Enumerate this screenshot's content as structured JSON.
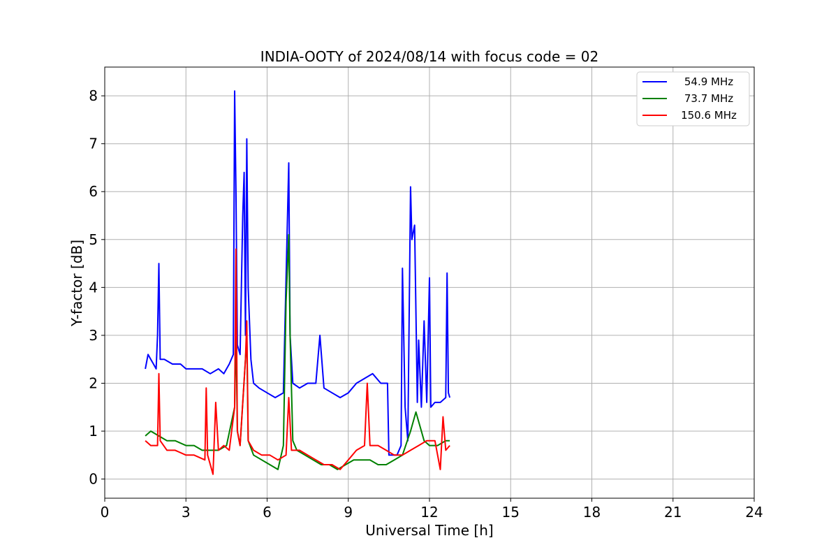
{
  "chart_data": {
    "type": "line",
    "title": "INDIA-OOTY of 2024/08/14 with focus code = 02",
    "xlabel": "Universal Time [h]",
    "ylabel": "Y-factor [dB]",
    "xlim": [
      0,
      24
    ],
    "ylim": [
      -0.4,
      8.6
    ],
    "xticks": [
      0,
      3,
      6,
      9,
      12,
      15,
      18,
      21,
      24
    ],
    "yticks": [
      0,
      1,
      2,
      3,
      4,
      5,
      6,
      7,
      8
    ],
    "grid": true,
    "legend_position": "top-right",
    "series": [
      {
        "name": "54.9 MHz",
        "color": "#0000ff",
        "x": [
          1.5,
          1.6,
          1.7,
          1.8,
          1.9,
          1.95,
          2.0,
          2.05,
          2.2,
          2.5,
          2.8,
          3.0,
          3.3,
          3.6,
          3.9,
          4.2,
          4.4,
          4.6,
          4.75,
          4.8,
          4.85,
          4.9,
          5.0,
          5.1,
          5.15,
          5.2,
          5.25,
          5.3,
          5.4,
          5.5,
          5.7,
          6.0,
          6.3,
          6.6,
          6.8,
          6.85,
          6.95,
          7.2,
          7.5,
          7.8,
          7.95,
          8.1,
          8.4,
          8.7,
          9.0,
          9.3,
          9.6,
          9.9,
          10.2,
          10.45,
          10.5,
          10.6,
          10.8,
          10.95,
          11.0,
          11.1,
          11.2,
          11.3,
          11.35,
          11.45,
          11.55,
          11.6,
          11.7,
          11.8,
          11.9,
          12.0,
          12.05,
          12.2,
          12.4,
          12.6,
          12.65,
          12.7,
          12.75
        ],
        "y": [
          2.3,
          2.6,
          2.5,
          2.4,
          2.3,
          3.0,
          4.5,
          2.5,
          2.5,
          2.4,
          2.4,
          2.3,
          2.3,
          2.3,
          2.2,
          2.3,
          2.2,
          2.4,
          2.6,
          8.1,
          6.0,
          2.8,
          2.6,
          5.5,
          6.4,
          3.0,
          7.1,
          4.0,
          2.5,
          2.0,
          1.9,
          1.8,
          1.7,
          1.8,
          6.6,
          3.0,
          2.0,
          1.9,
          2.0,
          2.0,
          3.0,
          1.9,
          1.8,
          1.7,
          1.8,
          2.0,
          2.1,
          2.2,
          2.0,
          2.0,
          0.5,
          0.5,
          0.5,
          0.7,
          4.4,
          1.5,
          0.8,
          6.1,
          5.0,
          5.3,
          1.6,
          2.9,
          1.5,
          3.3,
          1.6,
          4.2,
          1.5,
          1.6,
          1.6,
          1.7,
          4.3,
          1.8,
          1.7
        ]
      },
      {
        "name": "73.7 MHz",
        "color": "#008000",
        "x": [
          1.5,
          1.7,
          2.0,
          2.3,
          2.6,
          3.0,
          3.3,
          3.6,
          3.9,
          4.2,
          4.5,
          4.8,
          4.85,
          4.9,
          5.0,
          5.2,
          5.25,
          5.3,
          5.5,
          5.8,
          6.1,
          6.4,
          6.6,
          6.7,
          6.8,
          6.85,
          6.95,
          7.1,
          7.4,
          7.7,
          8.0,
          8.3,
          8.6,
          8.9,
          9.2,
          9.5,
          9.8,
          10.1,
          10.4,
          10.7,
          11.0,
          11.3,
          11.5,
          11.6,
          11.8,
          12.0,
          12.3,
          12.6,
          12.75
        ],
        "y": [
          0.9,
          1.0,
          0.9,
          0.8,
          0.8,
          0.7,
          0.7,
          0.6,
          0.6,
          0.6,
          0.7,
          1.5,
          3.2,
          1.0,
          0.7,
          2.5,
          3.0,
          0.8,
          0.5,
          0.4,
          0.3,
          0.2,
          0.7,
          3.7,
          5.1,
          3.0,
          0.8,
          0.6,
          0.5,
          0.4,
          0.3,
          0.3,
          0.2,
          0.3,
          0.4,
          0.4,
          0.4,
          0.3,
          0.3,
          0.4,
          0.5,
          1.0,
          1.4,
          1.2,
          0.8,
          0.7,
          0.7,
          0.8,
          0.8
        ]
      },
      {
        "name": "150.6 MHz",
        "color": "#ff0000",
        "x": [
          1.5,
          1.7,
          1.95,
          2.0,
          2.05,
          2.3,
          2.6,
          3.0,
          3.3,
          3.7,
          3.75,
          3.8,
          4.0,
          4.1,
          4.2,
          4.4,
          4.6,
          4.8,
          4.85,
          4.9,
          5.0,
          5.2,
          5.25,
          5.3,
          5.5,
          5.8,
          6.1,
          6.4,
          6.7,
          6.8,
          6.9,
          7.2,
          7.5,
          7.8,
          8.1,
          8.4,
          8.7,
          9.0,
          9.3,
          9.6,
          9.7,
          9.8,
          10.1,
          10.4,
          10.7,
          11.0,
          11.3,
          11.6,
          11.9,
          12.2,
          12.4,
          12.5,
          12.6,
          12.75
        ],
        "y": [
          0.8,
          0.7,
          0.7,
          2.2,
          0.8,
          0.6,
          0.6,
          0.5,
          0.5,
          0.4,
          1.9,
          0.5,
          0.1,
          1.6,
          0.6,
          0.7,
          0.6,
          1.5,
          4.8,
          1.0,
          0.7,
          2.5,
          3.3,
          0.8,
          0.6,
          0.5,
          0.5,
          0.4,
          0.5,
          1.7,
          0.6,
          0.6,
          0.5,
          0.4,
          0.3,
          0.3,
          0.2,
          0.4,
          0.6,
          0.7,
          2.0,
          0.7,
          0.7,
          0.6,
          0.5,
          0.5,
          0.6,
          0.7,
          0.8,
          0.8,
          0.2,
          1.3,
          0.6,
          0.7
        ]
      }
    ]
  }
}
